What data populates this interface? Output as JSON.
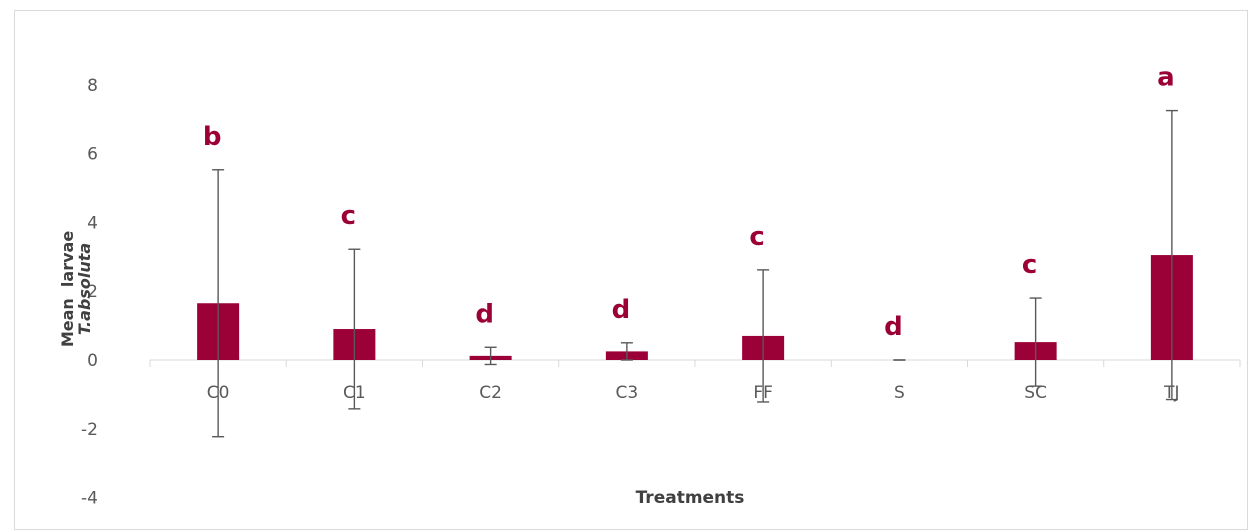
{
  "chart_data": {
    "type": "bar",
    "categories": [
      "C0",
      "C1",
      "C2",
      "C3",
      "FF",
      "S",
      "SC",
      "TJ"
    ],
    "series": [
      {
        "values": [
          1.65,
          0.9,
          0.12,
          0.25,
          0.7,
          0.0,
          0.52,
          3.05
        ],
        "error": [
          3.88,
          2.32,
          0.25,
          0.25,
          1.92,
          0.0,
          1.28,
          4.2
        ],
        "color": "#9b0036"
      }
    ],
    "significance_letters": [
      "b",
      "c",
      "d",
      "d",
      "c",
      "d",
      "c",
      "a"
    ],
    "title": "",
    "xlabel": "Treatments",
    "ylabel_line1": "Mean  larvae",
    "ylabel_line2": "T.absoluta",
    "ylim": [
      -4,
      8
    ],
    "yticks": [
      -4,
      -2,
      0,
      2,
      4,
      6,
      8
    ],
    "grid": false,
    "legend": "none"
  }
}
